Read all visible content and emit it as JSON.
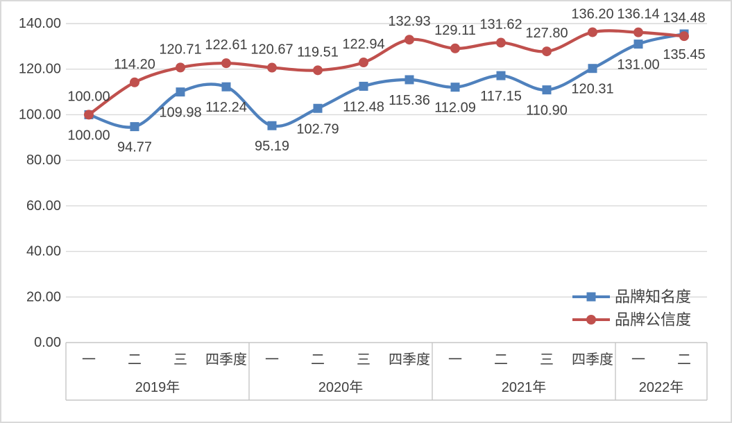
{
  "chart_data": {
    "type": "line",
    "title": "",
    "xlabel": "",
    "ylabel": "",
    "ylim": [
      0,
      140
    ],
    "ytick_step": 20,
    "ytick_labels": [
      "0.00",
      "20.00",
      "40.00",
      "60.00",
      "80.00",
      "100.00",
      "120.00",
      "140.00"
    ],
    "grid": true,
    "smooth_lines": true,
    "legend_position": "inside-right",
    "value_format": "0.00",
    "x_groups": [
      {
        "year": "2019年",
        "quarters": [
          "一",
          "二",
          "三",
          "四季度"
        ]
      },
      {
        "year": "2020年",
        "quarters": [
          "一",
          "二",
          "三",
          "四季度"
        ]
      },
      {
        "year": "2021年",
        "quarters": [
          "一",
          "二",
          "三",
          "四季度"
        ]
      },
      {
        "year": "2022年",
        "quarters": [
          "一",
          "二"
        ]
      }
    ],
    "series": [
      {
        "name": "品牌知名度",
        "color": "#4F81BD",
        "marker": "square",
        "label_position": "below",
        "values": [
          100.0,
          94.77,
          109.98,
          112.24,
          95.19,
          102.79,
          112.48,
          115.36,
          112.09,
          117.15,
          110.9,
          120.31,
          131.0,
          135.45
        ]
      },
      {
        "name": "品牌公信度",
        "color": "#C0504D",
        "marker": "circle",
        "label_position": "above",
        "values": [
          100.0,
          114.2,
          120.71,
          122.61,
          120.67,
          119.51,
          122.94,
          132.93,
          129.11,
          131.62,
          127.8,
          136.2,
          136.14,
          134.48
        ]
      }
    ],
    "colors": {
      "text": "#404040",
      "gridline": "#D9D9D9",
      "axis_box": "#C6C6C6",
      "background": "#FFFFFF",
      "chart_border": "#D9D9D9"
    }
  }
}
